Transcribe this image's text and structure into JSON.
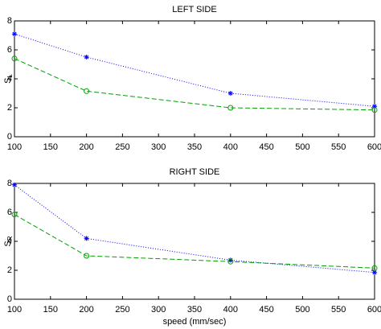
{
  "chart_data": [
    {
      "type": "line",
      "title": "LEFT SIDE",
      "ylabel": "S",
      "ylabel_subscript": "L",
      "x": [
        100,
        200,
        400,
        600
      ],
      "series": [
        {
          "color": "#0000ff",
          "linestyle": "dotted",
          "marker": "asterisk",
          "values": [
            7.1,
            5.5,
            3.0,
            2.1
          ]
        },
        {
          "color": "#00a000",
          "linestyle": "dashed",
          "marker": "circle",
          "values": [
            5.4,
            3.15,
            2.0,
            1.85
          ]
        }
      ],
      "xlim": [
        100,
        600
      ],
      "xticks": [
        100,
        150,
        200,
        250,
        300,
        350,
        400,
        450,
        500,
        550,
        600
      ],
      "ylim": [
        0,
        8
      ],
      "yticks": [
        0,
        2,
        4,
        6,
        8
      ]
    },
    {
      "type": "line",
      "title": "RIGHT SIDE",
      "ylabel": "S",
      "ylabel_subscript": "R",
      "xlabel": "speed (mm/sec)",
      "x": [
        100,
        200,
        400,
        600
      ],
      "series": [
        {
          "color": "#0000ff",
          "linestyle": "dotted",
          "marker": "asterisk",
          "values": [
            7.9,
            4.2,
            2.7,
            1.85
          ]
        },
        {
          "color": "#00a000",
          "linestyle": "dashed",
          "marker": "circle",
          "values": [
            5.85,
            3.0,
            2.6,
            2.15
          ]
        }
      ],
      "xlim": [
        100,
        600
      ],
      "xticks": [
        100,
        150,
        200,
        250,
        300,
        350,
        400,
        450,
        500,
        550,
        600
      ],
      "ylim": [
        0,
        8
      ],
      "yticks": [
        0,
        2,
        4,
        6,
        8
      ]
    }
  ]
}
